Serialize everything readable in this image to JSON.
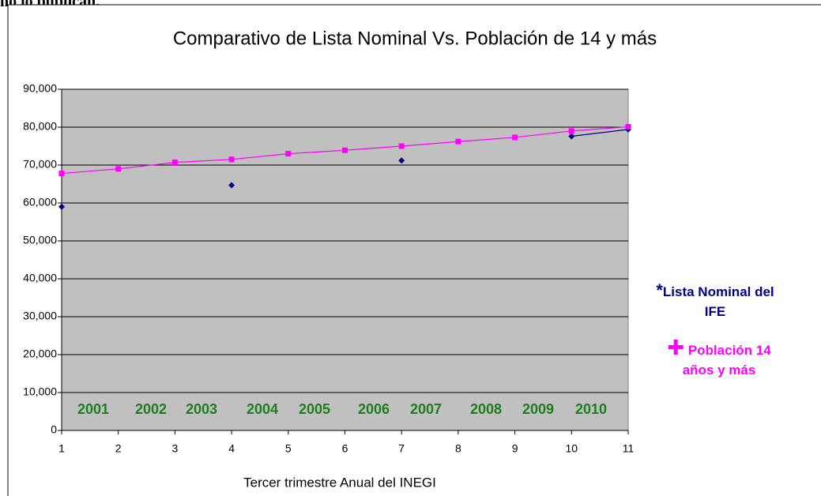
{
  "note": "no lo publican.",
  "chart_data": {
    "type": "line",
    "title": "Comparativo de Lista Nominal Vs. Población de 14 y más",
    "x_label": "Tercer trimestre Anual del INEGI",
    "x": [
      1,
      2,
      3,
      4,
      5,
      6,
      7,
      8,
      9,
      10,
      11
    ],
    "xlim": [
      1,
      11
    ],
    "xticks": [
      1,
      2,
      3,
      4,
      5,
      6,
      7,
      8,
      9,
      10,
      11
    ],
    "ylim": [
      0,
      90000
    ],
    "yticks": [
      0,
      {
        "value": 10000,
        "label": "10,000"
      },
      {
        "value": 20000,
        "label": "20,000"
      },
      {
        "value": 30000,
        "label": "30,000"
      },
      {
        "value": 40000,
        "label": "40,000"
      },
      {
        "value": 50000,
        "label": "50,000"
      },
      {
        "value": 60000,
        "label": "60,000"
      },
      {
        "value": 70000,
        "label": "70,000"
      },
      {
        "value": 80000,
        "label": "80,000"
      },
      {
        "value": 90000,
        "label": "90,000"
      }
    ],
    "grid": true,
    "series": [
      {
        "name": "Lista Nominal del IFE",
        "color": "#000080",
        "values": [
          59000,
          null,
          null,
          64700,
          null,
          null,
          71200,
          null,
          null,
          77600,
          79400
        ]
      },
      {
        "name": "Población 14 años y más",
        "color": "#ff00ff",
        "values": [
          67800,
          69000,
          70700,
          71500,
          73000,
          73900,
          75000,
          76200,
          77300,
          79000,
          80100
        ]
      }
    ],
    "annotations": [
      "2001",
      "2002",
      "2003",
      "2004",
      "2005",
      "2006",
      "2007",
      "2008",
      "2009",
      "2010"
    ],
    "annotation_color": "#1e7d1e"
  }
}
